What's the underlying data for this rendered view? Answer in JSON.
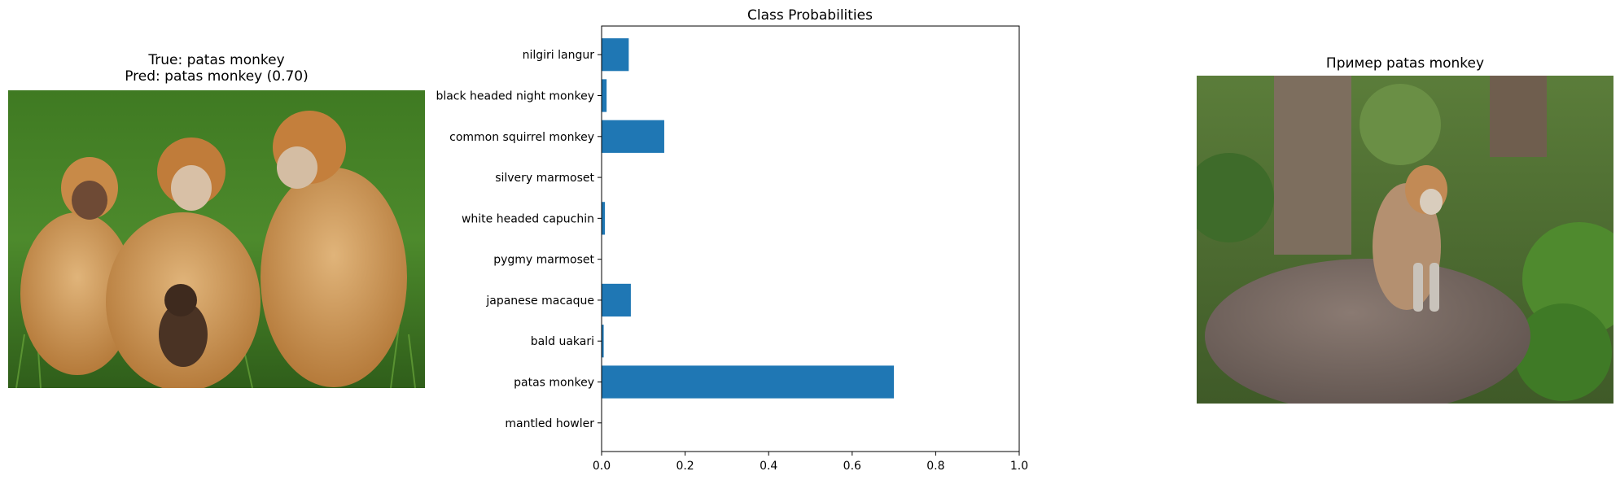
{
  "left_panel": {
    "title_line1": "True: patas monkey",
    "title_line2": "Pred: patas monkey (0.70)",
    "image_subject": "group of patas monkeys with infant on grass"
  },
  "right_panel": {
    "title": "Пример patas monkey",
    "image_subject": "patas monkey sitting on a rock among trees"
  },
  "chart_data": {
    "type": "bar",
    "orientation": "horizontal",
    "title": "Class Probabilities",
    "xlabel": "",
    "ylabel": "",
    "xlim": [
      0,
      1.0
    ],
    "xticks": [
      "0.0",
      "0.2",
      "0.4",
      "0.6",
      "0.8",
      "1.0"
    ],
    "categories": [
      "mantled howler",
      "patas monkey",
      "bald uakari",
      "japanese macaque",
      "pygmy marmoset",
      "white headed capuchin",
      "silvery marmoset",
      "common squirrel monkey",
      "black headed night monkey",
      "nilgiri langur"
    ],
    "values": [
      0.0,
      0.7,
      0.005,
      0.07,
      0.0,
      0.008,
      0.0,
      0.15,
      0.012,
      0.065
    ],
    "bar_color": "#1f77b4",
    "grid": false
  }
}
